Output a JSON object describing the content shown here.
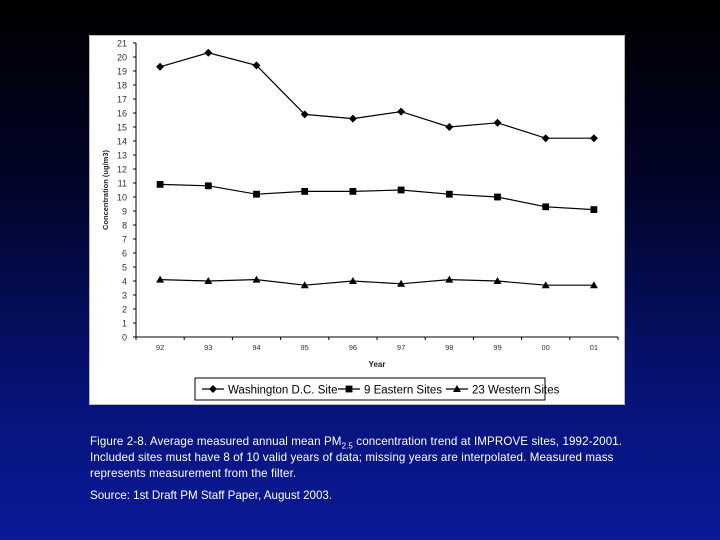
{
  "chart_data": {
    "type": "line",
    "categories": [
      "92",
      "93",
      "94",
      "95",
      "96",
      "97",
      "98",
      "99",
      "00",
      "01"
    ],
    "series": [
      {
        "name": "Washington D.C. Site",
        "marker": "diamond",
        "values": [
          19.3,
          20.3,
          19.4,
          15.9,
          15.6,
          16.1,
          15.0,
          15.3,
          14.2,
          14.2
        ]
      },
      {
        "name": "9 Eastern Sites",
        "marker": "square",
        "values": [
          10.9,
          10.8,
          10.2,
          10.4,
          10.4,
          10.5,
          10.2,
          10.0,
          9.3,
          9.1
        ]
      },
      {
        "name": "23 Western Sites",
        "marker": "triangle",
        "values": [
          4.1,
          4.0,
          4.1,
          3.7,
          4.0,
          3.8,
          4.1,
          4.0,
          3.7,
          3.7
        ]
      }
    ],
    "xlabel": "Year",
    "ylabel": "Concentration (ug/m3)",
    "ylim": [
      0,
      21
    ],
    "yticks": [
      0,
      1,
      2,
      3,
      4,
      5,
      6,
      7,
      8,
      9,
      10,
      11,
      12,
      13,
      14,
      15,
      16,
      17,
      18,
      19,
      20,
      21
    ],
    "grid": false,
    "legend": "bottom",
    "colors": {
      "line": "#000000",
      "panel": "#ffffff",
      "tick_text": "#333333"
    }
  },
  "caption": {
    "part1": "Figure 2-8.  Average measured annual mean PM",
    "sub": "2.5",
    "part2": " concentration trend at IMPROVE sites, 1992-2001.  Included sites must have 8 of 10 valid years of data; missing years are interpolated.  Measured mass represents measurement from the filter."
  },
  "source": "Source:  1st Draft PM Staff Paper, August 2003."
}
